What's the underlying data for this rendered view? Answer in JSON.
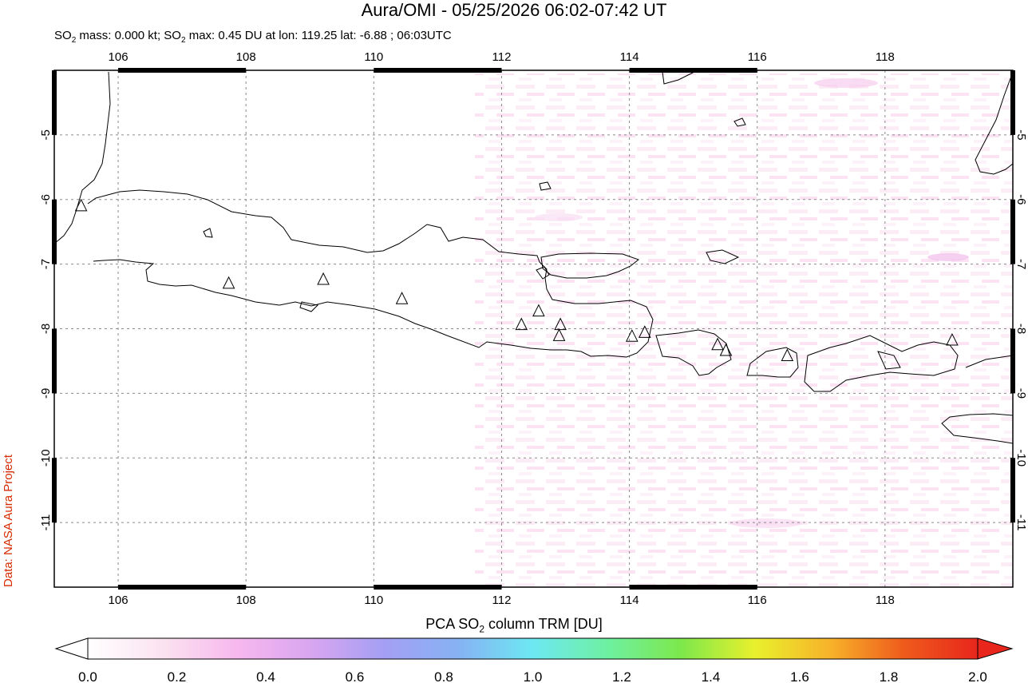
{
  "header": {
    "title": "Aura/OMI - 05/25/2026 06:02-07:42 UT",
    "subtitle_parts": [
      "SO",
      "2",
      " mass: 0.000 kt; SO",
      "2",
      " max: 0.45 DU at lon: 119.25 lat: -6.88 ; 06:03UTC"
    ]
  },
  "credit": "Data: NASA Aura Project",
  "map": {
    "lon_ticks": [
      "106",
      "108",
      "110",
      "112",
      "114",
      "116",
      "118"
    ],
    "lat_ticks": [
      "-5",
      "-6",
      "-7",
      "-8",
      "-9",
      "-10",
      "-11"
    ],
    "lon_range": [
      105,
      120
    ],
    "lat_range": [
      -12,
      -4
    ],
    "volcanoes": [
      {
        "lon": 105.42,
        "lat": -6.1
      },
      {
        "lon": 107.73,
        "lat": -7.3
      },
      {
        "lon": 109.21,
        "lat": -7.24
      },
      {
        "lon": 110.44,
        "lat": -7.54
      },
      {
        "lon": 112.31,
        "lat": -7.94
      },
      {
        "lon": 112.58,
        "lat": -7.73
      },
      {
        "lon": 112.92,
        "lat": -7.94
      },
      {
        "lon": 112.9,
        "lat": -8.11
      },
      {
        "lon": 114.04,
        "lat": -8.12
      },
      {
        "lon": 114.24,
        "lat": -8.06
      },
      {
        "lon": 115.38,
        "lat": -8.25
      },
      {
        "lon": 115.51,
        "lat": -8.34
      },
      {
        "lon": 116.47,
        "lat": -8.42
      },
      {
        "lon": 119.05,
        "lat": -8.18
      }
    ],
    "so2_max_location": {
      "lon": 119.25,
      "lat": -6.88
    }
  },
  "colorbar": {
    "title_parts": [
      "PCA SO",
      "2",
      " column TRM [DU]"
    ],
    "tick_labels": [
      "0.0",
      "0.2",
      "0.4",
      "0.6",
      "0.8",
      "1.0",
      "1.2",
      "1.4",
      "1.6",
      "1.8",
      "2.0"
    ],
    "colors": [
      "#ffffff",
      "#fbe3f0",
      "#f7b8ee",
      "#d9a6f0",
      "#a49ff4",
      "#86b2f3",
      "#6de8f2",
      "#6ef0a2",
      "#7de84c",
      "#e9f02c",
      "#f7b32a",
      "#ef5b1c",
      "#e8261c"
    ]
  }
}
